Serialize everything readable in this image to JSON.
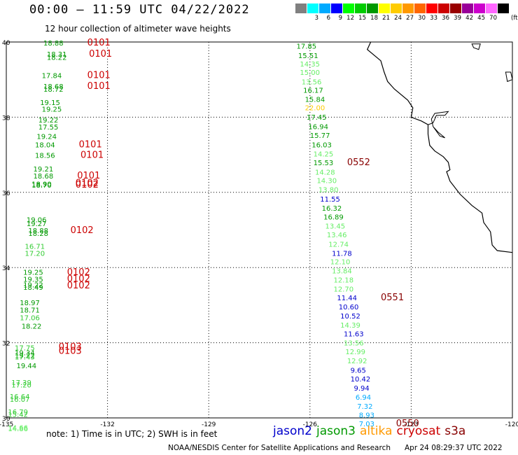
{
  "header": {
    "title": "00:00 – 11:59 UTC 04/22/2022",
    "subtitle": "12 hour collection of altimeter wave heights"
  },
  "colorbar": {
    "unit": "(ft)",
    "swatches": [
      {
        "color": "#808080",
        "label": ""
      },
      {
        "color": "#00ffff",
        "label": "3"
      },
      {
        "color": "#00aaff",
        "label": "6"
      },
      {
        "color": "#0000ff",
        "label": "9"
      },
      {
        "color": "#00ff00",
        "label": "12"
      },
      {
        "color": "#00cc00",
        "label": "15"
      },
      {
        "color": "#009900",
        "label": "18"
      },
      {
        "color": "#ffff00",
        "label": "21"
      },
      {
        "color": "#ffcc00",
        "label": "24"
      },
      {
        "color": "#ff9900",
        "label": "27"
      },
      {
        "color": "#ff6600",
        "label": "30"
      },
      {
        "color": "#ff0000",
        "label": "33"
      },
      {
        "color": "#cc0000",
        "label": "36"
      },
      {
        "color": "#990000",
        "label": "39"
      },
      {
        "color": "#990099",
        "label": "42"
      },
      {
        "color": "#cc00cc",
        "label": "45"
      },
      {
        "color": "#ff66ff",
        "label": "70"
      },
      {
        "color": "#000000",
        "label": ""
      }
    ]
  },
  "axes": {
    "lon_ticks": [
      "-135",
      "-132",
      "-129",
      "-126",
      "-123",
      "-120"
    ],
    "lat_ticks": [
      "40",
      "38",
      "36",
      "34",
      "32",
      "30"
    ]
  },
  "colors": {
    "jason2": "#0000cc",
    "jason3": "#009900",
    "jason3_light": "#33cc33",
    "jason3_pale": "#66ee66",
    "altika": "#ffcc00",
    "cryosat": "#cc0000",
    "s3a": "#880000",
    "cyan": "#00aaff"
  },
  "labels": {
    "west": [
      {
        "t": "18.88",
        "lat": 39.98,
        "lon": -133.9,
        "c": "jason3"
      },
      {
        "t": "18.31",
        "lat": 39.68,
        "lon": -133.8,
        "c": "jason3"
      },
      {
        "t": "18.22",
        "lat": 39.6,
        "lon": -133.8,
        "c": "jason3"
      },
      {
        "t": "17.84",
        "lat": 39.12,
        "lon": -133.95,
        "c": "jason3"
      },
      {
        "t": "18.68",
        "lat": 38.83,
        "lon": -133.9,
        "c": "jason3"
      },
      {
        "t": "18.72",
        "lat": 38.75,
        "lon": -133.9,
        "c": "jason3"
      },
      {
        "t": "19.15",
        "lat": 38.4,
        "lon": -134.0,
        "c": "jason3"
      },
      {
        "t": "19.25",
        "lat": 38.22,
        "lon": -133.95,
        "c": "jason3"
      },
      {
        "t": "19.22",
        "lat": 37.93,
        "lon": -134.05,
        "c": "jason3"
      },
      {
        "t": "17.55",
        "lat": 37.75,
        "lon": -134.05,
        "c": "jason3"
      },
      {
        "t": "19.24",
        "lat": 37.5,
        "lon": -134.1,
        "c": "jason3"
      },
      {
        "t": "18.04",
        "lat": 37.27,
        "lon": -134.15,
        "c": "jason3"
      },
      {
        "t": "18.56",
        "lat": 36.99,
        "lon": -134.15,
        "c": "jason3"
      },
      {
        "t": "19.21",
        "lat": 36.63,
        "lon": -134.2,
        "c": "jason3"
      },
      {
        "t": "18.68",
        "lat": 36.44,
        "lon": -134.2,
        "c": "jason3"
      },
      {
        "t": "18.90",
        "lat": 36.23,
        "lon": -134.25,
        "c": "jason3"
      },
      {
        "t": "18.70",
        "lat": 36.2,
        "lon": -134.25,
        "c": "jason3"
      },
      {
        "t": "19.06",
        "lat": 35.28,
        "lon": -134.4,
        "c": "jason3"
      },
      {
        "t": "19.27",
        "lat": 35.18,
        "lon": -134.4,
        "c": "jason3"
      },
      {
        "t": "18.88",
        "lat": 34.99,
        "lon": -134.35,
        "c": "jason3"
      },
      {
        "t": "18.28",
        "lat": 34.92,
        "lon": -134.35,
        "c": "jason3"
      },
      {
        "t": "16.71",
        "lat": 34.57,
        "lon": -134.45,
        "c": "jason3_light"
      },
      {
        "t": "17.20",
        "lat": 34.39,
        "lon": -134.45,
        "c": "jason3_light"
      },
      {
        "t": "19.25",
        "lat": 33.88,
        "lon": -134.5,
        "c": "jason3"
      },
      {
        "t": "19.35",
        "lat": 33.7,
        "lon": -134.5,
        "c": "jason3"
      },
      {
        "t": "19.22",
        "lat": 33.55,
        "lon": -134.5,
        "c": "jason3"
      },
      {
        "t": "18.49",
        "lat": 33.48,
        "lon": -134.5,
        "c": "jason3"
      },
      {
        "t": "18.97",
        "lat": 33.07,
        "lon": -134.6,
        "c": "jason3"
      },
      {
        "t": "18.71",
        "lat": 32.88,
        "lon": -134.6,
        "c": "jason3"
      },
      {
        "t": "17.06",
        "lat": 32.67,
        "lon": -134.6,
        "c": "jason3_light"
      },
      {
        "t": "18.22",
        "lat": 32.45,
        "lon": -134.55,
        "c": "jason3"
      },
      {
        "t": "17.75",
        "lat": 31.87,
        "lon": -134.75,
        "c": "jason3_light"
      },
      {
        "t": "19.34",
        "lat": 31.74,
        "lon": -134.75,
        "c": "jason3"
      },
      {
        "t": "19.22",
        "lat": 31.67,
        "lon": -134.75,
        "c": "jason3"
      },
      {
        "t": "17.43",
        "lat": 31.63,
        "lon": -134.75,
        "c": "jason3_light"
      },
      {
        "t": "19.44",
        "lat": 31.4,
        "lon": -134.7,
        "c": "jason3"
      },
      {
        "t": "17.39",
        "lat": 30.95,
        "lon": -134.85,
        "c": "jason3_light"
      },
      {
        "t": "17.20",
        "lat": 30.88,
        "lon": -134.85,
        "c": "jason3_light"
      },
      {
        "t": "16.64",
        "lat": 30.58,
        "lon": -134.9,
        "c": "jason3_light"
      },
      {
        "t": "16.07",
        "lat": 30.5,
        "lon": -134.9,
        "c": "jason3_light"
      },
      {
        "t": "16.79",
        "lat": 30.17,
        "lon": -134.95,
        "c": "jason3_light"
      },
      {
        "t": "15.42",
        "lat": 30.1,
        "lon": -134.95,
        "c": "jason3_light"
      },
      {
        "t": "14.66",
        "lat": 29.75,
        "lon": -134.95,
        "c": "jason3_pale"
      },
      {
        "t": "14.86",
        "lat": 29.72,
        "lon": -134.95,
        "c": "jason3_pale"
      }
    ],
    "west_sat": [
      {
        "t": "0101",
        "lat": 39.98,
        "lon": -132.6
      },
      {
        "t": "0101",
        "lat": 39.68,
        "lon": -132.55
      },
      {
        "t": "0101",
        "lat": 39.12,
        "lon": -132.6
      },
      {
        "t": "0101",
        "lat": 38.83,
        "lon": -132.6
      },
      {
        "t": "0101",
        "lat": 37.27,
        "lon": -132.85
      },
      {
        "t": "0101",
        "lat": 36.99,
        "lon": -132.8
      },
      {
        "t": "0101",
        "lat": 36.44,
        "lon": -132.9
      },
      {
        "t": "0102",
        "lat": 36.25,
        "lon": -132.95
      },
      {
        "t": "0102",
        "lat": 36.2,
        "lon": -132.95
      },
      {
        "t": "0102",
        "lat": 34.99,
        "lon": -133.1
      },
      {
        "t": "0102",
        "lat": 33.87,
        "lon": -133.2
      },
      {
        "t": "0102",
        "lat": 33.7,
        "lon": -133.2
      },
      {
        "t": "0102",
        "lat": 33.52,
        "lon": -133.2
      },
      {
        "t": "0103",
        "lat": 31.89,
        "lon": -133.45
      },
      {
        "t": "0103",
        "lat": 31.78,
        "lon": -133.45
      }
    ],
    "east": [
      {
        "t": "17.85",
        "lat": 39.9,
        "lon": -126.4,
        "c": "jason3"
      },
      {
        "t": "15.51",
        "lat": 39.65,
        "lon": -126.35,
        "c": "jason3"
      },
      {
        "t": "14.35",
        "lat": 39.42,
        "lon": -126.3,
        "c": "jason3_pale"
      },
      {
        "t": "15.00",
        "lat": 39.2,
        "lon": -126.3,
        "c": "jason3_pale"
      },
      {
        "t": "13.56",
        "lat": 38.95,
        "lon": -126.25,
        "c": "jason3_pale"
      },
      {
        "t": "16.17",
        "lat": 38.72,
        "lon": -126.2,
        "c": "jason3"
      },
      {
        "t": "15.84",
        "lat": 38.48,
        "lon": -126.15,
        "c": "jason3"
      },
      {
        "t": "22.00",
        "lat": 38.26,
        "lon": -126.15,
        "c": "altika"
      },
      {
        "t": "17.45",
        "lat": 38.01,
        "lon": -126.1,
        "c": "jason3"
      },
      {
        "t": "16.94",
        "lat": 37.76,
        "lon": -126.05,
        "c": "jason3"
      },
      {
        "t": "15.77",
        "lat": 37.52,
        "lon": -126.0,
        "c": "jason3"
      },
      {
        "t": "16.03",
        "lat": 37.27,
        "lon": -125.95,
        "c": "jason3"
      },
      {
        "t": "14.25",
        "lat": 37.03,
        "lon": -125.9,
        "c": "jason3_pale"
      },
      {
        "t": "15.53",
        "lat": 36.8,
        "lon": -125.9,
        "c": "jason3"
      },
      {
        "t": "14.28",
        "lat": 36.55,
        "lon": -125.85,
        "c": "jason3_pale"
      },
      {
        "t": "14.30",
        "lat": 36.32,
        "lon": -125.8,
        "c": "jason3_pale"
      },
      {
        "t": "13.80",
        "lat": 36.08,
        "lon": -125.75,
        "c": "jason3_pale"
      },
      {
        "t": "11.55",
        "lat": 35.83,
        "lon": -125.7,
        "c": "jason2"
      },
      {
        "t": "16.32",
        "lat": 35.59,
        "lon": -125.65,
        "c": "jason3"
      },
      {
        "t": "16.89",
        "lat": 35.35,
        "lon": -125.6,
        "c": "jason3"
      },
      {
        "t": "13.45",
        "lat": 35.11,
        "lon": -125.55,
        "c": "jason3_pale"
      },
      {
        "t": "13.46",
        "lat": 34.88,
        "lon": -125.5,
        "c": "jason3_pale"
      },
      {
        "t": "12.74",
        "lat": 34.63,
        "lon": -125.45,
        "c": "jason3_pale"
      },
      {
        "t": "11.78",
        "lat": 34.39,
        "lon": -125.35,
        "c": "jason2"
      },
      {
        "t": "12.10",
        "lat": 34.16,
        "lon": -125.4,
        "c": "jason3_pale"
      },
      {
        "t": "13.84",
        "lat": 33.92,
        "lon": -125.35,
        "c": "jason3_pale"
      },
      {
        "t": "12.18",
        "lat": 33.68,
        "lon": -125.3,
        "c": "jason3_pale"
      },
      {
        "t": "12.70",
        "lat": 33.44,
        "lon": -125.3,
        "c": "jason3_pale"
      },
      {
        "t": "11.44",
        "lat": 33.2,
        "lon": -125.2,
        "c": "jason2"
      },
      {
        "t": "10.60",
        "lat": 32.96,
        "lon": -125.15,
        "c": "jason2"
      },
      {
        "t": "10.52",
        "lat": 32.72,
        "lon": -125.1,
        "c": "jason2"
      },
      {
        "t": "14.39",
        "lat": 32.48,
        "lon": -125.1,
        "c": "jason3_pale"
      },
      {
        "t": "11.63",
        "lat": 32.24,
        "lon": -125.0,
        "c": "jason2"
      },
      {
        "t": "13.56",
        "lat": 32.0,
        "lon": -125.0,
        "c": "jason3_pale"
      },
      {
        "t": "12.99",
        "lat": 31.77,
        "lon": -124.95,
        "c": "jason3_pale"
      },
      {
        "t": "12.92",
        "lat": 31.53,
        "lon": -124.9,
        "c": "jason3_pale"
      },
      {
        "t": "9.65",
        "lat": 31.28,
        "lon": -124.8,
        "c": "jason2"
      },
      {
        "t": "10.42",
        "lat": 31.04,
        "lon": -124.8,
        "c": "jason2"
      },
      {
        "t": "9.94",
        "lat": 30.8,
        "lon": -124.7,
        "c": "jason2"
      },
      {
        "t": "6.94",
        "lat": 30.56,
        "lon": -124.65,
        "c": "cyan"
      },
      {
        "t": "7.32",
        "lat": 30.32,
        "lon": -124.6,
        "c": "cyan"
      },
      {
        "t": "8.93",
        "lat": 30.08,
        "lon": -124.55,
        "c": "cyan"
      },
      {
        "t": "7.03",
        "lat": 29.85,
        "lon": -124.55,
        "c": "cyan"
      }
    ],
    "east_sat": [
      {
        "t": "0552",
        "lat": 36.8,
        "lon": -124.9
      },
      {
        "t": "0551",
        "lat": 33.2,
        "lon": -123.9
      },
      {
        "t": "0550",
        "lat": 29.85,
        "lon": -123.45
      }
    ]
  },
  "note": "note:  1) Time is in UTC;  2) SWH is in feet",
  "legend": [
    {
      "name": "jason2",
      "color": "#0000cc"
    },
    {
      "name": "jason3",
      "color": "#009900"
    },
    {
      "name": "altika",
      "color": "#ff9900"
    },
    {
      "name": "cryosat",
      "color": "#cc0000"
    },
    {
      "name": "s3a",
      "color": "#880000"
    }
  ],
  "footer": {
    "org": "NOAA/NESDIS Center for Satellite Applications and Research",
    "timestamp": "Apr 24 08:29:37 UTC 2022"
  }
}
